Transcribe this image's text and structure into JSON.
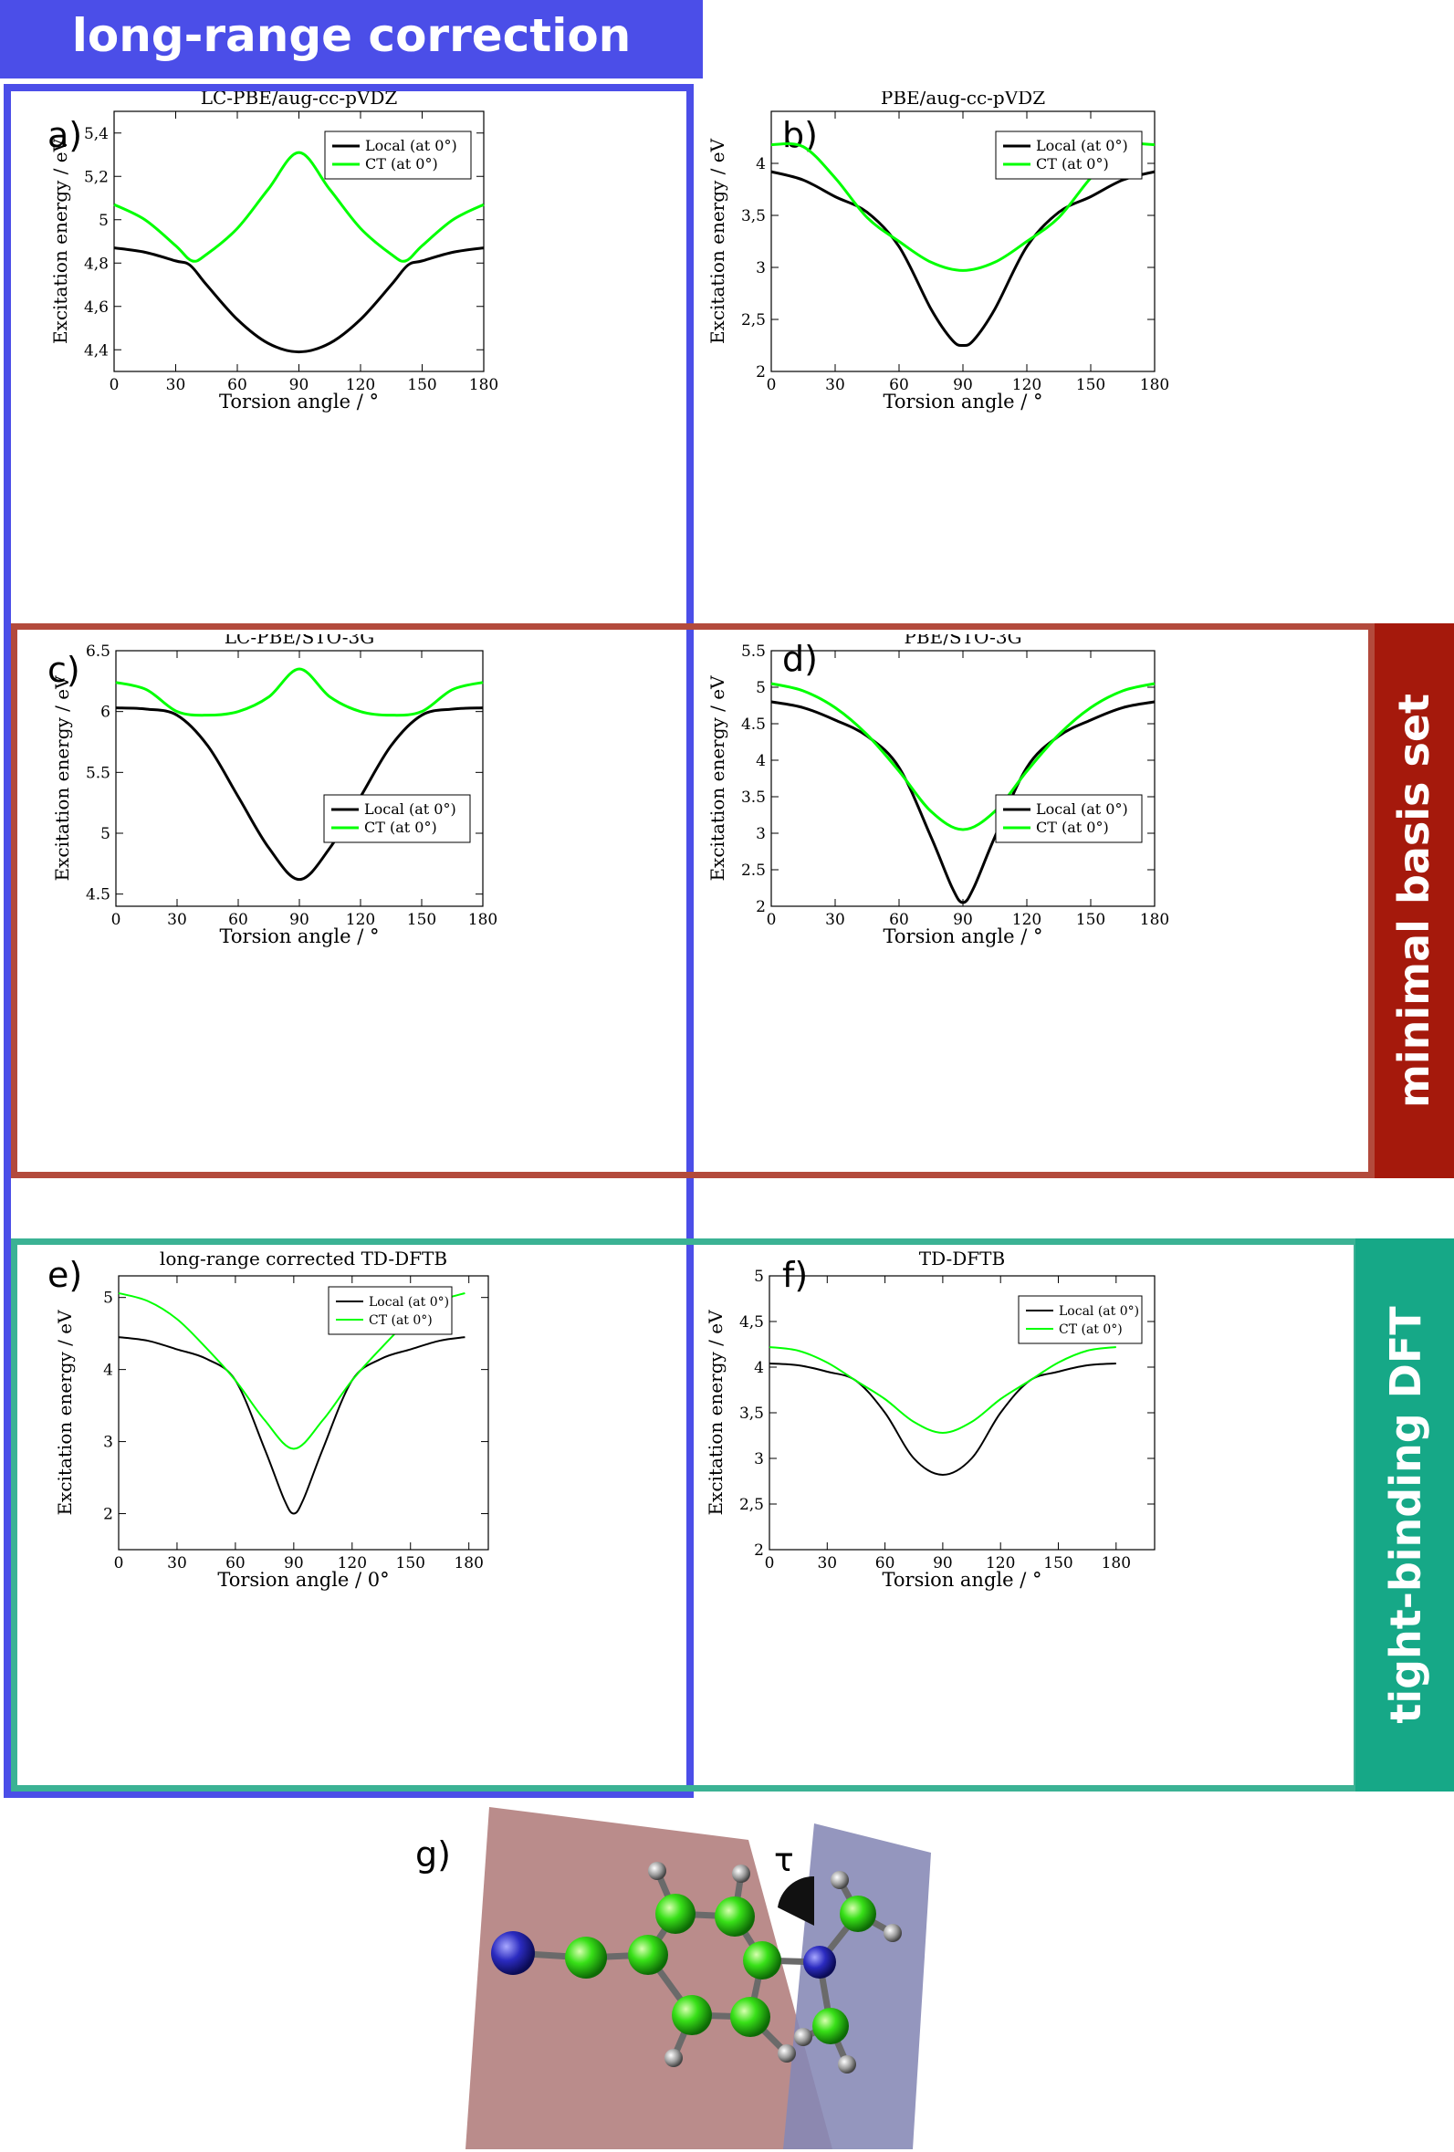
{
  "groups": {
    "long_range": {
      "label": "long-range correction",
      "color": "#4b4ee8"
    },
    "minimal_basis": {
      "label": "minimal basis set",
      "color": "#a5190c"
    },
    "tight_binding": {
      "label": "tight-binding DFT",
      "color": "#16a887"
    }
  },
  "molecule": {
    "letter": "g)",
    "tau": "τ"
  },
  "colors": {
    "local": "#000000",
    "ct": "#00ff00"
  },
  "chart_data": [
    {
      "id": "a",
      "letter": "a)",
      "type": "line",
      "title": "LC-PBE/aug-cc-pVDZ",
      "xlabel": "Torsion angle / °",
      "ylabel": "Excitation energy / eV",
      "xlim": [
        0,
        180
      ],
      "ylim": [
        4.3,
        5.5
      ],
      "xticks": [
        0,
        30,
        60,
        90,
        120,
        150,
        180
      ],
      "xtick_labels": [
        "0",
        "30",
        "60",
        "90",
        "120",
        "150",
        "180"
      ],
      "yticks": [
        4.4,
        4.6,
        4.8,
        5.0,
        5.2,
        5.4
      ],
      "ytick_labels": [
        "4,4",
        "4,6",
        "4,8",
        "5",
        "5,2",
        "5,4"
      ],
      "legend": "top-right",
      "line_width": 3,
      "series": [
        {
          "name": "Local (at 0°)",
          "color": "#000000",
          "x": [
            0,
            15,
            30,
            37,
            45,
            60,
            75,
            90,
            105,
            120,
            135,
            143,
            150,
            165,
            180
          ],
          "y": [
            4.87,
            4.85,
            4.81,
            4.79,
            4.7,
            4.54,
            4.43,
            4.39,
            4.43,
            4.54,
            4.7,
            4.79,
            4.81,
            4.85,
            4.87
          ]
        },
        {
          "name": "CT (at 0°)",
          "color": "#00ff00",
          "x": [
            0,
            15,
            30,
            38,
            45,
            60,
            75,
            90,
            105,
            120,
            135,
            142,
            150,
            165,
            180
          ],
          "y": [
            5.07,
            5.0,
            4.88,
            4.81,
            4.84,
            4.96,
            5.14,
            5.31,
            5.14,
            4.96,
            4.84,
            4.81,
            4.88,
            5.0,
            5.07
          ]
        }
      ]
    },
    {
      "id": "b",
      "letter": "b)",
      "type": "line",
      "title": "PBE/aug-cc-pVDZ",
      "xlabel": "Torsion angle / °",
      "ylabel": "Excitation energy / eV",
      "xlim": [
        0,
        180
      ],
      "ylim": [
        2,
        4.5
      ],
      "xticks": [
        0,
        30,
        60,
        90,
        120,
        150,
        180
      ],
      "xtick_labels": [
        "0",
        "30",
        "60",
        "90",
        "120",
        "150",
        "180"
      ],
      "yticks": [
        2,
        2.5,
        3,
        3.5,
        4
      ],
      "ytick_labels": [
        "2",
        "2,5",
        "3",
        "3,5",
        "4"
      ],
      "legend": "top-right",
      "line_width": 3,
      "series": [
        {
          "name": "Local (at 0°)",
          "color": "#000000",
          "x": [
            0,
            15,
            30,
            45,
            60,
            75,
            85,
            90,
            95,
            105,
            120,
            135,
            150,
            165,
            180
          ],
          "y": [
            3.92,
            3.84,
            3.68,
            3.53,
            3.2,
            2.6,
            2.3,
            2.25,
            2.3,
            2.6,
            3.2,
            3.53,
            3.68,
            3.84,
            3.92
          ]
        },
        {
          "name": "CT (at 0°)",
          "color": "#00ff00",
          "x": [
            0,
            15,
            30,
            45,
            60,
            75,
            90,
            105,
            120,
            135,
            150,
            165,
            180
          ],
          "y": [
            4.18,
            4.16,
            3.86,
            3.48,
            3.25,
            3.05,
            2.97,
            3.05,
            3.25,
            3.48,
            3.86,
            4.16,
            4.18
          ]
        }
      ]
    },
    {
      "id": "c",
      "letter": "c)",
      "type": "line",
      "title": "LC-PBE/STO-3G",
      "xlabel": "Torsion angle / °",
      "ylabel": "Excitation energy / eV",
      "xlim": [
        0,
        180
      ],
      "ylim": [
        4.4,
        6.5
      ],
      "xticks": [
        0,
        30,
        60,
        90,
        120,
        150,
        180
      ],
      "xtick_labels": [
        "0",
        "30",
        "60",
        "90",
        "120",
        "150",
        "180"
      ],
      "yticks": [
        4.5,
        5,
        5.5,
        6,
        6.5
      ],
      "ytick_labels": [
        "4.5",
        "5",
        "5.5",
        "6",
        "6.5"
      ],
      "legend": "bottom-right",
      "line_width": 3,
      "series": [
        {
          "name": "Local (at 0°)",
          "color": "#000000",
          "x": [
            0,
            15,
            30,
            45,
            60,
            75,
            90,
            105,
            120,
            135,
            150,
            165,
            180
          ],
          "y": [
            6.03,
            6.02,
            5.97,
            5.72,
            5.3,
            4.88,
            4.62,
            4.88,
            5.3,
            5.72,
            5.97,
            6.02,
            6.03
          ]
        },
        {
          "name": "CT (at 0°)",
          "color": "#00ff00",
          "x": [
            0,
            15,
            30,
            45,
            60,
            75,
            90,
            105,
            120,
            135,
            150,
            165,
            180
          ],
          "y": [
            6.24,
            6.18,
            6.0,
            5.97,
            6.0,
            6.12,
            6.35,
            6.12,
            6.0,
            5.97,
            6.0,
            6.18,
            6.24
          ]
        }
      ]
    },
    {
      "id": "d",
      "letter": "d)",
      "type": "line",
      "title": "PBE/STO-3G",
      "xlabel": "Torsion angle / °",
      "ylabel": "Excitation energy / eV",
      "xlim": [
        0,
        180
      ],
      "ylim": [
        2,
        5.5
      ],
      "xticks": [
        0,
        30,
        60,
        90,
        120,
        150,
        180
      ],
      "xtick_labels": [
        "0",
        "30",
        "60",
        "90",
        "120",
        "150",
        "180"
      ],
      "yticks": [
        2,
        2.5,
        3,
        3.5,
        4,
        4.5,
        5,
        5.5
      ],
      "ytick_labels": [
        "2",
        "2.5",
        "3",
        "3.5",
        "4",
        "4.5",
        "5",
        "5.5"
      ],
      "legend": "bottom-right",
      "line_width": 3,
      "series": [
        {
          "name": "Local (at 0°)",
          "color": "#000000",
          "x": [
            0,
            15,
            30,
            45,
            60,
            75,
            85,
            90,
            95,
            105,
            120,
            135,
            150,
            165,
            180
          ],
          "y": [
            4.8,
            4.72,
            4.55,
            4.33,
            3.9,
            2.95,
            2.25,
            2.05,
            2.25,
            2.95,
            3.9,
            4.33,
            4.55,
            4.72,
            4.8
          ]
        },
        {
          "name": "CT (at 0°)",
          "color": "#00ff00",
          "x": [
            0,
            15,
            30,
            45,
            60,
            75,
            90,
            105,
            120,
            135,
            150,
            165,
            180
          ],
          "y": [
            5.05,
            4.95,
            4.72,
            4.35,
            3.85,
            3.3,
            3.05,
            3.3,
            3.85,
            4.35,
            4.72,
            4.95,
            5.05
          ]
        }
      ]
    },
    {
      "id": "e",
      "letter": "e)",
      "type": "line",
      "title": "long-range corrected TD-DFTB",
      "xlabel": "Torsion angle / 0°",
      "ylabel": "Excitation energy / eV",
      "xlim": [
        0,
        190
      ],
      "ylim": [
        1.5,
        5.3
      ],
      "xticks": [
        0,
        30,
        60,
        90,
        120,
        150,
        180
      ],
      "xtick_labels": [
        "0",
        "30",
        "60",
        "90",
        "120",
        "150",
        "180"
      ],
      "yticks": [
        2,
        3,
        4,
        5
      ],
      "ytick_labels": [
        "2",
        "3",
        "4",
        "5"
      ],
      "legend": "top-right",
      "line_width": 2,
      "series": [
        {
          "name": "Local (at 0°)",
          "color": "#000000",
          "x": [
            0,
            15,
            30,
            45,
            60,
            75,
            85,
            90,
            95,
            105,
            120,
            135,
            150,
            165,
            178
          ],
          "y": [
            4.45,
            4.4,
            4.28,
            4.15,
            3.85,
            2.9,
            2.2,
            2.0,
            2.2,
            2.9,
            3.85,
            4.15,
            4.28,
            4.4,
            4.45
          ]
        },
        {
          "name": "CT (at 0°)",
          "color": "#00ff00",
          "x": [
            0,
            15,
            30,
            45,
            60,
            75,
            90,
            105,
            120,
            135,
            150,
            165,
            178
          ],
          "y": [
            5.06,
            4.95,
            4.7,
            4.3,
            3.85,
            3.3,
            2.9,
            3.3,
            3.85,
            4.3,
            4.7,
            4.95,
            5.06
          ]
        }
      ]
    },
    {
      "id": "f",
      "letter": "f)",
      "type": "line",
      "title": "TD-DFTB",
      "xlabel": "Torsion angle / °",
      "ylabel": "Excitation energy / eV",
      "xlim": [
        0,
        200
      ],
      "ylim": [
        2,
        5
      ],
      "xticks": [
        0,
        30,
        60,
        90,
        120,
        150,
        180
      ],
      "xtick_labels": [
        "0",
        "30",
        "60",
        "90",
        "120",
        "150",
        "180"
      ],
      "yticks": [
        2,
        2.5,
        3,
        3.5,
        4,
        4.5,
        5
      ],
      "ytick_labels": [
        "2",
        "2,5",
        "3",
        "3,5",
        "4",
        "4,5",
        "5"
      ],
      "legend": "top-right",
      "line_width": 2,
      "series": [
        {
          "name": "Local (at 0°)",
          "color": "#000000",
          "x": [
            0,
            15,
            30,
            45,
            60,
            75,
            90,
            105,
            120,
            135,
            150,
            165,
            180
          ],
          "y": [
            4.04,
            4.02,
            3.95,
            3.85,
            3.5,
            3.0,
            2.82,
            3.0,
            3.5,
            3.85,
            3.95,
            4.02,
            4.04
          ]
        },
        {
          "name": "CT (at 0°)",
          "color": "#00ff00",
          "x": [
            0,
            15,
            30,
            45,
            60,
            75,
            90,
            105,
            120,
            135,
            150,
            165,
            180
          ],
          "y": [
            4.22,
            4.18,
            4.05,
            3.85,
            3.65,
            3.4,
            3.28,
            3.4,
            3.65,
            3.85,
            4.05,
            4.18,
            4.22
          ]
        }
      ]
    }
  ]
}
